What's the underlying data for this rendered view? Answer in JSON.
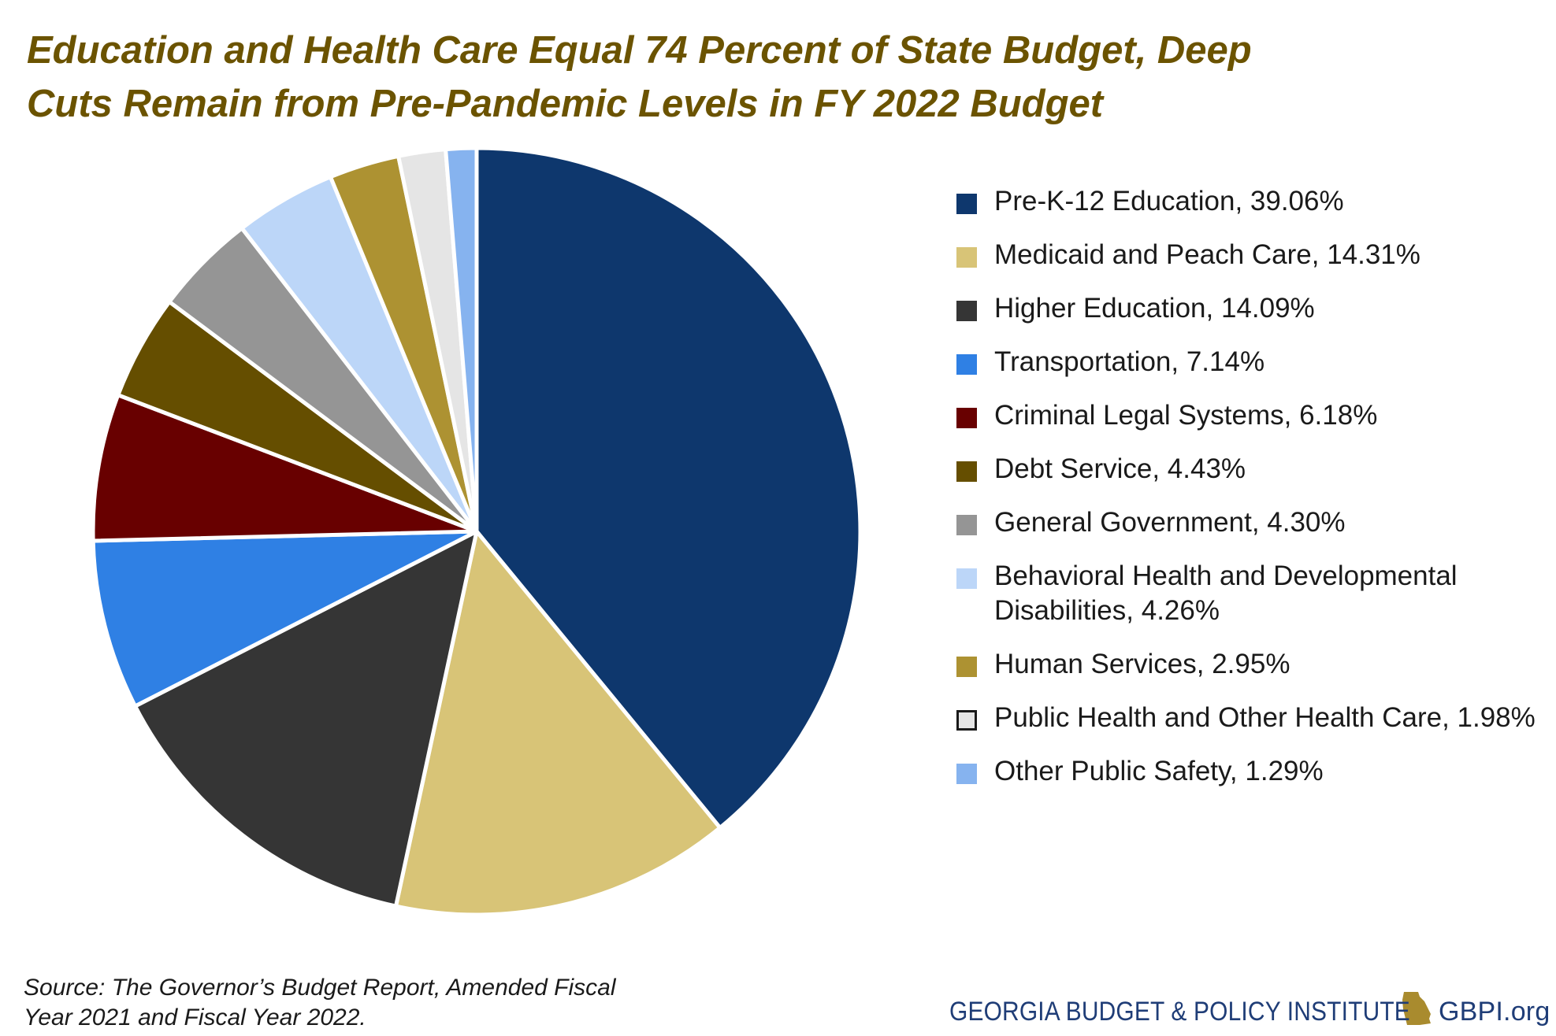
{
  "title": {
    "line1": "Education and Health Care Equal 74 Percent of State Budget, Deep",
    "line2": "Cuts Remain from Pre-Pandemic Levels in FY 2022 Budget"
  },
  "chart_data": {
    "type": "pie",
    "title": "Education and Health Care Equal 74 Percent of State Budget, Deep Cuts Remain from Pre-Pandemic Levels in FY 2022 Budget",
    "legend_position": "right",
    "start_angle": "12 o'clock, clockwise",
    "slices": [
      {
        "label": "Pre-K-12 Education, 39.06%",
        "value": 39.06,
        "color": "#0e376d"
      },
      {
        "label": "Medicaid and Peach Care, 14.31%",
        "value": 14.31,
        "color": "#d8c477"
      },
      {
        "label": "Higher Education, 14.09%",
        "value": 14.09,
        "color": "#353535"
      },
      {
        "label": "Transportation, 7.14%",
        "value": 7.14,
        "color": "#2f80e4"
      },
      {
        "label": "Criminal Legal Systems, 6.18%",
        "value": 6.18,
        "color": "#680000"
      },
      {
        "label": "Debt Service, 4.43%",
        "value": 4.43,
        "color": "#654e00"
      },
      {
        "label": "General Government, 4.30%",
        "value": 4.3,
        "color": "#959595"
      },
      {
        "label": "Behavioral Health and Developmental Disabilities, 4.26%",
        "value": 4.26,
        "color": "#bcd6f8"
      },
      {
        "label": "Human Services, 2.95%",
        "value": 2.95,
        "color": "#ad9232"
      },
      {
        "label": "Public Health and Other Health Care, 1.98%",
        "value": 1.98,
        "color": "#e5e5e5",
        "outlined": true
      },
      {
        "label": "Other Public Safety, 1.29%",
        "value": 1.29,
        "color": "#86b3ef"
      }
    ],
    "slice_border_color": "#ffffff"
  },
  "source": {
    "line1": "Source: The Governor’s Budget Report, Amended Fiscal",
    "line2": "Year 2021 and Fiscal Year 2022."
  },
  "footer": {
    "org_name": "GEORGIA BUDGET & POLICY INSTITUTE",
    "url": "GBPI.org",
    "icon": "georgia-state-map-icon",
    "icon_color": "#a98b2e"
  }
}
